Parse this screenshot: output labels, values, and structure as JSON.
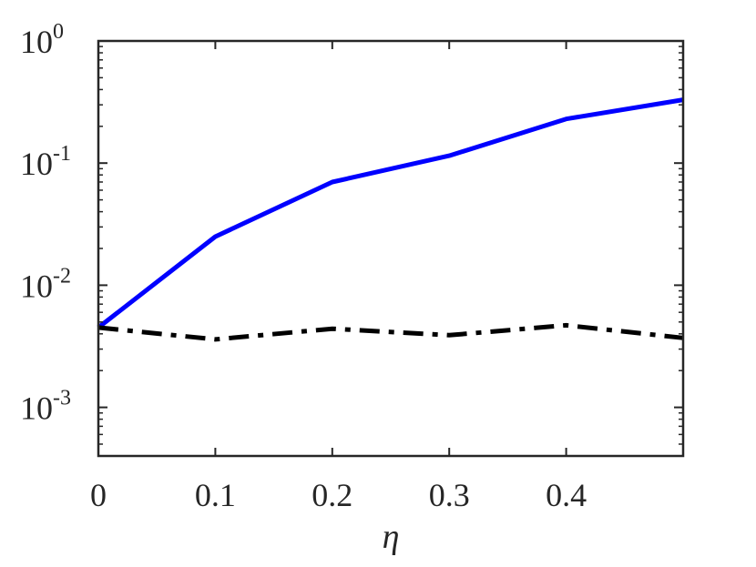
{
  "chart_data": {
    "type": "line",
    "title": "",
    "xlabel": "η",
    "ylabel": "",
    "xlim": [
      0,
      0.5
    ],
    "ylim": [
      0.0004,
      1
    ],
    "yscale": "log",
    "grid": false,
    "box": true,
    "x_ticks": [
      {
        "value": 0,
        "label": "0"
      },
      {
        "value": 0.1,
        "label": "0.1"
      },
      {
        "value": 0.2,
        "label": "0.2"
      },
      {
        "value": 0.3,
        "label": "0.3"
      },
      {
        "value": 0.4,
        "label": "0.4"
      }
    ],
    "y_ticks": [
      {
        "value": 0.001,
        "base": "10",
        "exponent": "-3"
      },
      {
        "value": 0.01,
        "base": "10",
        "exponent": "-2"
      },
      {
        "value": 0.1,
        "base": "10",
        "exponent": "-1"
      },
      {
        "value": 1,
        "base": "10",
        "exponent": "0"
      }
    ],
    "series": [
      {
        "color": "#0000ff",
        "style": "solid",
        "x": [
          0,
          0.1,
          0.2,
          0.3,
          0.4,
          0.5
        ],
        "y": [
          0.0045,
          0.025,
          0.07,
          0.115,
          0.23,
          0.33
        ]
      },
      {
        "color": "#000000",
        "style": "dashdot",
        "x": [
          0,
          0.1,
          0.2,
          0.3,
          0.4,
          0.5
        ],
        "y": [
          0.0045,
          0.0036,
          0.0044,
          0.0039,
          0.0047,
          0.0037
        ]
      }
    ]
  }
}
